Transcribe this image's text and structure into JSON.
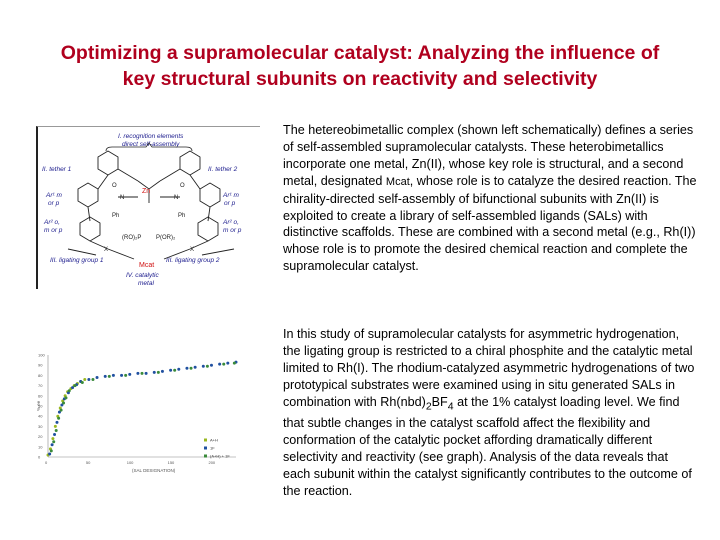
{
  "title": {
    "line1": "Optimizing a supramolecular catalyst: Analyzing the influence of",
    "line2": "key structural subunits on reactivity and selectivity"
  },
  "paragraph1": {
    "before": "The hetereobimetallic complex (shown left schematically) defines a series of self-assembled supramolecular catalysts. These heterobimetallics incorporate one metal, Zn(II), whose key role is structural, and a second metal, designated ",
    "mcat": "Mcat",
    "after": ", whose role is to catalyze the desired reaction. The chirality-directed self-assembly of bifunctional subunits with Zn(II) is exploited to create a library of self-assembled ligands (SALs) with distinctive scaffolds. These are combined with a second metal (e.g., Rh(I)) whose role is to promote the desired chemical reaction and complete the supramolecular catalyst."
  },
  "paragraph2": {
    "before": "In this study of supramolecular catalysts for asymmetric hydrogenation, the ligating group is restricted to a chiral phosphite and the catalytic metal limited to Rh(I). The rhodium-catalyzed asymmetric hydrogenations of two prototypical substrates were examined using in situ generated SALs in combination with Rh(nbd)",
    "sub": "2",
    "mid": "BF",
    "sub2": "4",
    "after": " at the 1% catalyst loading level. We find that subtle changes in the catalyst scaffold affect the flexibility and conformation of the catalytic pocket affording dramatically different selectivity and reactivity (see graph). Analysis of the data reveals that each subunit within the catalyst significantly contributes to the outcome of the reaction."
  },
  "diagram": {
    "labels": {
      "recognition": "I. recognition elements",
      "direct": "direct self-assembly",
      "tether1": "II. tether 1",
      "tether2": "II. tether 2",
      "ar1_left": "Ar¹ m",
      "or_p_left": "or p",
      "ar2_left": "Ar² o,",
      "mor_p_left": "m or p",
      "ar1_right": "Ar¹ m",
      "or_p_right": "or p",
      "ar2_right": "Ar² o,",
      "mor_p_right": "m or p",
      "ligating1": "III. ligating group 1",
      "ligating2": "III. ligating group 2",
      "catalytic": "IV. catalytic",
      "metal": "metal",
      "zn": "Zn",
      "mcat": "Mcat"
    },
    "colors": {
      "label": "#1a1a8c",
      "accent": "#d01010",
      "bond": "#222222"
    }
  },
  "chart_data": {
    "type": "scatter",
    "ylim": [
      0,
      100
    ],
    "xlim": [
      0,
      230
    ],
    "yticks": [
      "100",
      "90",
      "80",
      "70",
      "60",
      "50",
      "40",
      "30",
      "20",
      "10",
      "0"
    ],
    "xticks": [
      "0",
      "50",
      "100",
      "150",
      "200"
    ],
    "ylabel": "% ee",
    "xlabel": "(SAL DESIGNATION)",
    "legend_position": "right",
    "series": [
      {
        "name": "A+H",
        "color": "#9ab820",
        "x": [
          0,
          3,
          6,
          9,
          12,
          15,
          18,
          21,
          24,
          28,
          32,
          36,
          40,
          45
        ],
        "y": [
          2,
          8,
          18,
          30,
          40,
          48,
          55,
          60,
          64,
          67,
          70,
          72,
          74,
          76
        ]
      },
      {
        "name": "1F",
        "color": "#2050a0",
        "x": [
          2,
          5,
          8,
          11,
          14,
          17,
          20,
          25,
          30,
          35,
          40,
          50,
          60,
          70,
          80,
          90,
          100,
          110,
          120,
          130,
          140,
          150,
          160,
          170,
          180,
          190,
          200,
          210,
          220,
          230
        ],
        "y": [
          3,
          12,
          22,
          34,
          44,
          51,
          57,
          63,
          68,
          71,
          74,
          76,
          78,
          79,
          80,
          80,
          81,
          82,
          82,
          83,
          84,
          85,
          86,
          87,
          88,
          89,
          90,
          91,
          92,
          93
        ]
      },
      {
        "name": "(A+H) + 1F",
        "color": "#3a8a3a",
        "x": [
          4,
          7,
          10,
          13,
          16,
          19,
          22,
          26,
          33,
          42,
          55,
          75,
          95,
          115,
          135,
          155,
          175,
          195,
          215,
          228
        ],
        "y": [
          6,
          15,
          26,
          38,
          46,
          53,
          58,
          65,
          70,
          73,
          76,
          79,
          80,
          82,
          83,
          85,
          87,
          89,
          91,
          92
        ]
      }
    ]
  }
}
